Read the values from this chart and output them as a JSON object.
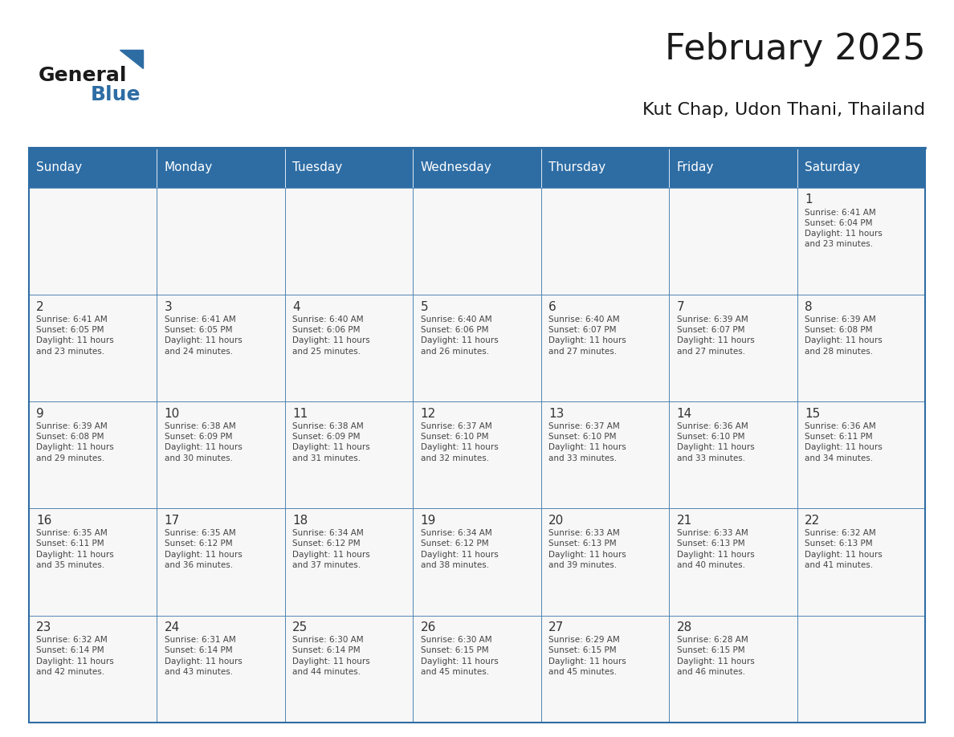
{
  "title": "February 2025",
  "subtitle": "Kut Chap, Udon Thani, Thailand",
  "header_bg": "#2E6DA4",
  "header_text": "#FFFFFF",
  "border_color": "#2E6DA4",
  "text_color": "#333333",
  "day_headers": [
    "Sunday",
    "Monday",
    "Tuesday",
    "Wednesday",
    "Thursday",
    "Friday",
    "Saturday"
  ],
  "calendar_data": [
    [
      null,
      null,
      null,
      null,
      null,
      null,
      {
        "day": 1,
        "sunrise": "6:41 AM",
        "sunset": "6:04 PM",
        "daylight": "11 hours\nand 23 minutes."
      }
    ],
    [
      {
        "day": 2,
        "sunrise": "6:41 AM",
        "sunset": "6:05 PM",
        "daylight": "11 hours\nand 23 minutes."
      },
      {
        "day": 3,
        "sunrise": "6:41 AM",
        "sunset": "6:05 PM",
        "daylight": "11 hours\nand 24 minutes."
      },
      {
        "day": 4,
        "sunrise": "6:40 AM",
        "sunset": "6:06 PM",
        "daylight": "11 hours\nand 25 minutes."
      },
      {
        "day": 5,
        "sunrise": "6:40 AM",
        "sunset": "6:06 PM",
        "daylight": "11 hours\nand 26 minutes."
      },
      {
        "day": 6,
        "sunrise": "6:40 AM",
        "sunset": "6:07 PM",
        "daylight": "11 hours\nand 27 minutes."
      },
      {
        "day": 7,
        "sunrise": "6:39 AM",
        "sunset": "6:07 PM",
        "daylight": "11 hours\nand 27 minutes."
      },
      {
        "day": 8,
        "sunrise": "6:39 AM",
        "sunset": "6:08 PM",
        "daylight": "11 hours\nand 28 minutes."
      }
    ],
    [
      {
        "day": 9,
        "sunrise": "6:39 AM",
        "sunset": "6:08 PM",
        "daylight": "11 hours\nand 29 minutes."
      },
      {
        "day": 10,
        "sunrise": "6:38 AM",
        "sunset": "6:09 PM",
        "daylight": "11 hours\nand 30 minutes."
      },
      {
        "day": 11,
        "sunrise": "6:38 AM",
        "sunset": "6:09 PM",
        "daylight": "11 hours\nand 31 minutes."
      },
      {
        "day": 12,
        "sunrise": "6:37 AM",
        "sunset": "6:10 PM",
        "daylight": "11 hours\nand 32 minutes."
      },
      {
        "day": 13,
        "sunrise": "6:37 AM",
        "sunset": "6:10 PM",
        "daylight": "11 hours\nand 33 minutes."
      },
      {
        "day": 14,
        "sunrise": "6:36 AM",
        "sunset": "6:10 PM",
        "daylight": "11 hours\nand 33 minutes."
      },
      {
        "day": 15,
        "sunrise": "6:36 AM",
        "sunset": "6:11 PM",
        "daylight": "11 hours\nand 34 minutes."
      }
    ],
    [
      {
        "day": 16,
        "sunrise": "6:35 AM",
        "sunset": "6:11 PM",
        "daylight": "11 hours\nand 35 minutes."
      },
      {
        "day": 17,
        "sunrise": "6:35 AM",
        "sunset": "6:12 PM",
        "daylight": "11 hours\nand 36 minutes."
      },
      {
        "day": 18,
        "sunrise": "6:34 AM",
        "sunset": "6:12 PM",
        "daylight": "11 hours\nand 37 minutes."
      },
      {
        "day": 19,
        "sunrise": "6:34 AM",
        "sunset": "6:12 PM",
        "daylight": "11 hours\nand 38 minutes."
      },
      {
        "day": 20,
        "sunrise": "6:33 AM",
        "sunset": "6:13 PM",
        "daylight": "11 hours\nand 39 minutes."
      },
      {
        "day": 21,
        "sunrise": "6:33 AM",
        "sunset": "6:13 PM",
        "daylight": "11 hours\nand 40 minutes."
      },
      {
        "day": 22,
        "sunrise": "6:32 AM",
        "sunset": "6:13 PM",
        "daylight": "11 hours\nand 41 minutes."
      }
    ],
    [
      {
        "day": 23,
        "sunrise": "6:32 AM",
        "sunset": "6:14 PM",
        "daylight": "11 hours\nand 42 minutes."
      },
      {
        "day": 24,
        "sunrise": "6:31 AM",
        "sunset": "6:14 PM",
        "daylight": "11 hours\nand 43 minutes."
      },
      {
        "day": 25,
        "sunrise": "6:30 AM",
        "sunset": "6:14 PM",
        "daylight": "11 hours\nand 44 minutes."
      },
      {
        "day": 26,
        "sunrise": "6:30 AM",
        "sunset": "6:15 PM",
        "daylight": "11 hours\nand 45 minutes."
      },
      {
        "day": 27,
        "sunrise": "6:29 AM",
        "sunset": "6:15 PM",
        "daylight": "11 hours\nand 45 minutes."
      },
      {
        "day": 28,
        "sunrise": "6:28 AM",
        "sunset": "6:15 PM",
        "daylight": "11 hours\nand 46 minutes."
      },
      null
    ]
  ],
  "logo_text1": "General",
  "logo_text2": "Blue",
  "logo_triangle_color": "#2E6DA4"
}
